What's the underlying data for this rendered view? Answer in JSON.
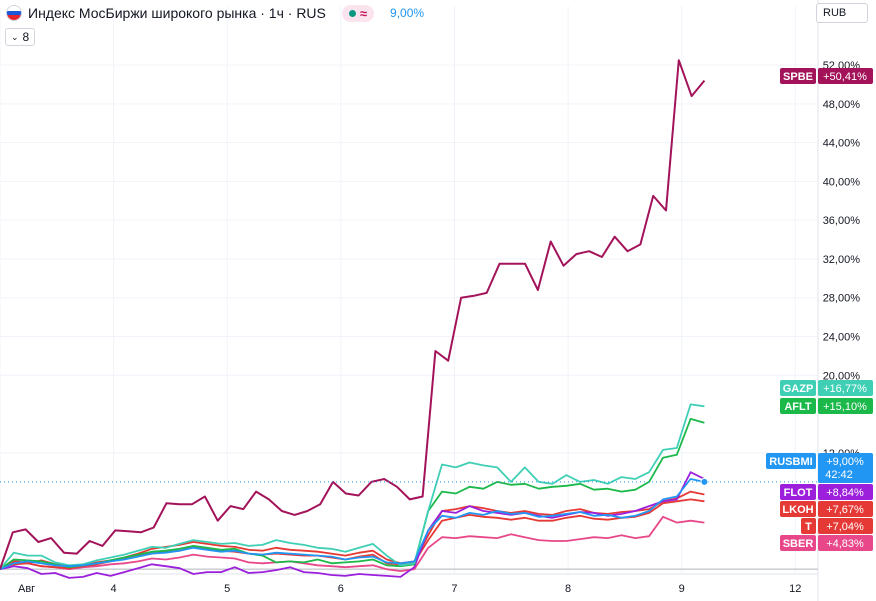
{
  "header": {
    "title": "Индекс МосБиржи широкого рынка · 1ч · RUS",
    "approx_symbol": "≈",
    "last_value": "9,00%",
    "collapse_label": "8",
    "currency": "RUB"
  },
  "colors": {
    "SPBE": "#a3135a",
    "GAZP": "#3fcfb5",
    "AFLT": "#1bb84a",
    "RUSBMI": "#2196f3",
    "FLOT": "#9c1fdc",
    "LKOH": "#e53935",
    "T": "#e53935",
    "SBER": "#e8488a"
  },
  "chart_data": {
    "type": "line",
    "title": "",
    "xlabel": "",
    "ylabel": "",
    "ylim": [
      -0.5,
      55
    ],
    "x_range": [
      0,
      72
    ],
    "y_ticks": [
      "52,00%",
      "48,00%",
      "44,00%",
      "40,00%",
      "36,00%",
      "32,00%",
      "28,00%",
      "24,00%",
      "20,00%",
      "12,00%"
    ],
    "y_tick_values": [
      52,
      48,
      44,
      40,
      36,
      32,
      28,
      24,
      20,
      12
    ],
    "x_ticks": [
      {
        "x": 0,
        "label": "Авг"
      },
      {
        "x": 10,
        "label": "4"
      },
      {
        "x": 20,
        "label": "5"
      },
      {
        "x": 30,
        "label": "6"
      },
      {
        "x": 40,
        "label": "7"
      },
      {
        "x": 50,
        "label": "8"
      },
      {
        "x": 60,
        "label": "9"
      },
      {
        "x": 70,
        "label": "12"
      }
    ],
    "series": [
      {
        "name": "SPBE",
        "label": "+50,41%",
        "values": [
          0,
          3.8,
          4.1,
          2.8,
          3.2,
          1.7,
          1.6,
          2.9,
          2.4,
          4.0,
          3.9,
          3.8,
          4.3,
          6.8,
          6.7,
          6.7,
          7.5,
          5.0,
          6.5,
          6.2,
          8.0,
          7.2,
          6.0,
          5.6,
          6.0,
          6.7,
          9.0,
          7.8,
          7.6,
          9.0,
          9.3,
          8.5,
          7.2,
          7.5,
          22.5,
          21.5,
          28.0,
          28.2,
          28.5,
          31.5,
          31.5,
          31.5,
          28.8,
          33.8,
          31.3,
          32.5,
          32.8,
          32.2,
          34.3,
          32.8,
          33.5,
          38.5,
          37.0,
          52.5,
          48.8,
          50.4
        ]
      },
      {
        "name": "GAZP",
        "label": "+16,77%",
        "values": [
          0,
          1.7,
          1.4,
          1.4,
          0.7,
          0.4,
          0.5,
          0.9,
          1.2,
          1.5,
          1.9,
          2.3,
          2.2,
          2.6,
          3.0,
          2.8,
          2.6,
          2.7,
          2.4,
          2.5,
          3.0,
          2.7,
          2.5,
          2.2,
          2.1,
          1.8,
          2.2,
          2.6,
          1.4,
          0.4,
          0.6,
          6.0,
          10.8,
          10.5,
          11.0,
          10.7,
          10.5,
          9.0,
          10.5,
          9.0,
          8.8,
          9.7,
          9.0,
          9.2,
          8.8,
          9.5,
          9.3,
          10.0,
          12.3,
          12.5,
          17.0,
          16.8
        ]
      },
      {
        "name": "AFLT",
        "label": "+15,10%",
        "values": [
          0,
          1.0,
          0.9,
          0.8,
          0.5,
          0.2,
          0.4,
          0.6,
          0.9,
          1.2,
          1.5,
          1.8,
          1.9,
          2.1,
          2.4,
          2.2,
          2.0,
          2.1,
          1.6,
          1.4,
          0.7,
          0.8,
          0.7,
          1.0,
          0.6,
          0.7,
          0.8,
          1.0,
          0.4,
          0.3,
          0.5,
          6.0,
          8.0,
          7.8,
          8.5,
          8.3,
          9.0,
          8.7,
          8.8,
          8.3,
          8.5,
          8.6,
          8.8,
          8.2,
          8.3,
          8.0,
          8.2,
          9.0,
          11.5,
          11.8,
          15.5,
          15.1
        ]
      },
      {
        "name": "RUSBMI",
        "label": "+9,00%",
        "values": [
          0,
          0.6,
          0.8,
          0.6,
          0.4,
          0.3,
          0.4,
          0.6,
          0.8,
          1.0,
          1.3,
          1.6,
          1.7,
          1.9,
          2.2,
          2.0,
          1.8,
          1.9,
          1.6,
          1.5,
          1.7,
          1.6,
          1.5,
          1.4,
          1.3,
          1.0,
          1.2,
          1.3,
          0.7,
          0.6,
          0.8,
          4.0,
          5.5,
          5.3,
          5.8,
          5.6,
          6.0,
          5.7,
          5.8,
          5.4,
          5.5,
          5.7,
          5.9,
          5.5,
          5.6,
          5.3,
          5.5,
          6.0,
          7.2,
          7.5,
          9.3,
          9.0
        ]
      },
      {
        "name": "FLOT",
        "label": "+8,84%",
        "values": [
          0,
          0.3,
          0.1,
          -0.5,
          -0.4,
          -0.9,
          -0.8,
          -0.4,
          -0.7,
          -0.3,
          0.1,
          0.5,
          0.3,
          0.1,
          -0.5,
          -0.3,
          -0.3,
          0.2,
          -0.4,
          -0.3,
          -0.1,
          0.2,
          -0.3,
          -0.4,
          -0.6,
          -0.7,
          -0.5,
          -0.6,
          -0.7,
          -0.8,
          0.2,
          4.0,
          6.0,
          5.8,
          6.5,
          6.0,
          5.8,
          5.6,
          5.8,
          5.5,
          5.3,
          5.6,
          5.9,
          5.8,
          5.5,
          5.7,
          6.0,
          6.5,
          7.0,
          7.2,
          10.0,
          9.3
        ]
      },
      {
        "name": "LKOH",
        "label": "+7,67%",
        "values": [
          0,
          0.8,
          0.6,
          0.9,
          0.5,
          0.3,
          0.4,
          0.7,
          0.9,
          1.2,
          1.6,
          2.1,
          2.3,
          2.5,
          2.8,
          2.6,
          2.4,
          2.3,
          2.0,
          1.9,
          2.2,
          2.0,
          1.9,
          1.8,
          1.6,
          1.4,
          1.7,
          1.9,
          1.0,
          0.6,
          0.8,
          3.5,
          6.0,
          6.2,
          6.5,
          6.3,
          6.0,
          5.8,
          6.0,
          5.7,
          5.6,
          6.0,
          6.2,
          5.8,
          5.7,
          5.9,
          6.0,
          6.2,
          7.0,
          7.3,
          8.0,
          7.7
        ]
      },
      {
        "name": "T",
        "label": "+7,04%",
        "values": [
          0,
          0.5,
          0.6,
          0.3,
          0.2,
          0.1,
          0.3,
          0.5,
          0.8,
          1.1,
          1.4,
          1.6,
          1.8,
          1.9,
          2.3,
          2.1,
          1.9,
          1.8,
          1.6,
          1.5,
          1.6,
          1.5,
          1.4,
          1.4,
          1.2,
          1.0,
          1.3,
          1.5,
          0.6,
          0.5,
          0.7,
          3.0,
          5.0,
          5.3,
          5.6,
          5.4,
          5.3,
          5.1,
          5.3,
          5.0,
          5.0,
          5.3,
          5.5,
          5.2,
          5.1,
          5.3,
          5.4,
          5.8,
          6.8,
          7.0,
          7.2,
          7.0
        ]
      },
      {
        "name": "SBER",
        "label": "+4,83%",
        "values": [
          0,
          0.9,
          0.6,
          0.3,
          0.2,
          0.0,
          0.2,
          0.3,
          0.5,
          0.6,
          0.8,
          1.1,
          1.0,
          1.2,
          1.5,
          1.3,
          1.2,
          1.1,
          0.7,
          0.6,
          0.7,
          0.8,
          0.6,
          0.4,
          0.3,
          0.2,
          0.3,
          0.4,
          0.0,
          -0.2,
          0.0,
          2.2,
          3.3,
          3.2,
          3.4,
          3.3,
          3.2,
          3.6,
          3.3,
          3.0,
          2.9,
          2.9,
          3.1,
          3.3,
          3.2,
          3.5,
          3.2,
          3.4,
          5.4,
          4.8,
          5.0,
          4.8
        ]
      }
    ],
    "last_price_label": {
      "series": "RUSBMI",
      "countdown": "42:42"
    }
  }
}
